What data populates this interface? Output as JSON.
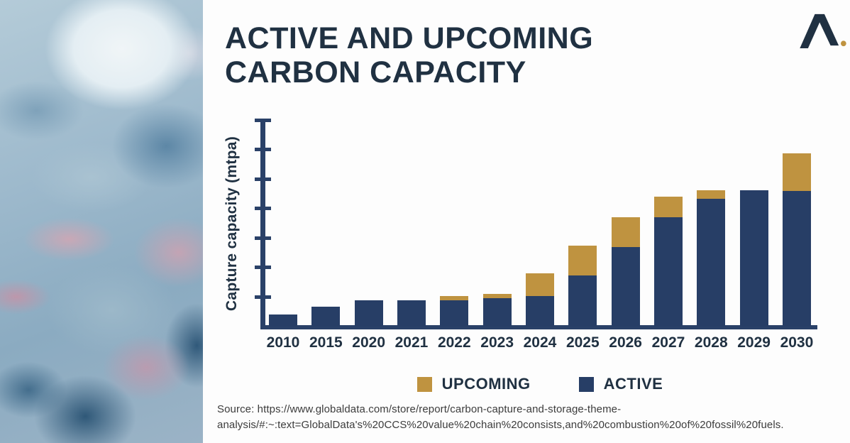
{
  "header": {
    "title": "ACTIVE AND UPCOMING CARBON CAPACITY",
    "logo": {
      "description": "caret-mark-with-gold-dot",
      "mark_color": "#203142",
      "dot_color": "#bf9340"
    }
  },
  "chart_data": {
    "type": "bar",
    "stacked": true,
    "title": "ACTIVE AND UPCOMING CARBON CAPACITY",
    "xlabel": "",
    "ylabel": "Capture capacity (mtpa)",
    "categories": [
      "2010",
      "2015",
      "2020",
      "2021",
      "2022",
      "2023",
      "2024",
      "2025",
      "2026",
      "2027",
      "2028",
      "2029",
      "2030"
    ],
    "series": [
      {
        "name": "UPCOMING",
        "color": "#bf9340",
        "values": [
          0,
          0,
          0,
          0,
          7,
          7,
          38,
          51,
          50,
          35,
          14,
          0,
          64
        ]
      },
      {
        "name": "ACTIVE",
        "color": "#273e66",
        "values": [
          20,
          34,
          45,
          45,
          45,
          48,
          52,
          87,
          135,
          185,
          217,
          231,
          230
        ]
      }
    ],
    "stack_order": [
      "ACTIVE",
      "UPCOMING"
    ],
    "ylim": [
      0,
      350
    ],
    "ytick_interval": 50,
    "yticks_labeled": false,
    "grid": false,
    "legend_position": "bottom",
    "note": "y-axis has tick marks but no numeric labels; values estimated at 50 mtpa per tick"
  },
  "legend": {
    "items": [
      {
        "label": "UPCOMING",
        "color": "#bf9340"
      },
      {
        "label": "ACTIVE",
        "color": "#273e66"
      }
    ]
  },
  "footer": {
    "source_line1": "Source: https://www.globaldata.com/store/report/carbon-capture-and-storage-theme-",
    "source_line2": "analysis/#:~:text=GlobalData's%20CCS%20value%20chain%20consists,and%20combustion%20of%20fossil%20fuels."
  }
}
